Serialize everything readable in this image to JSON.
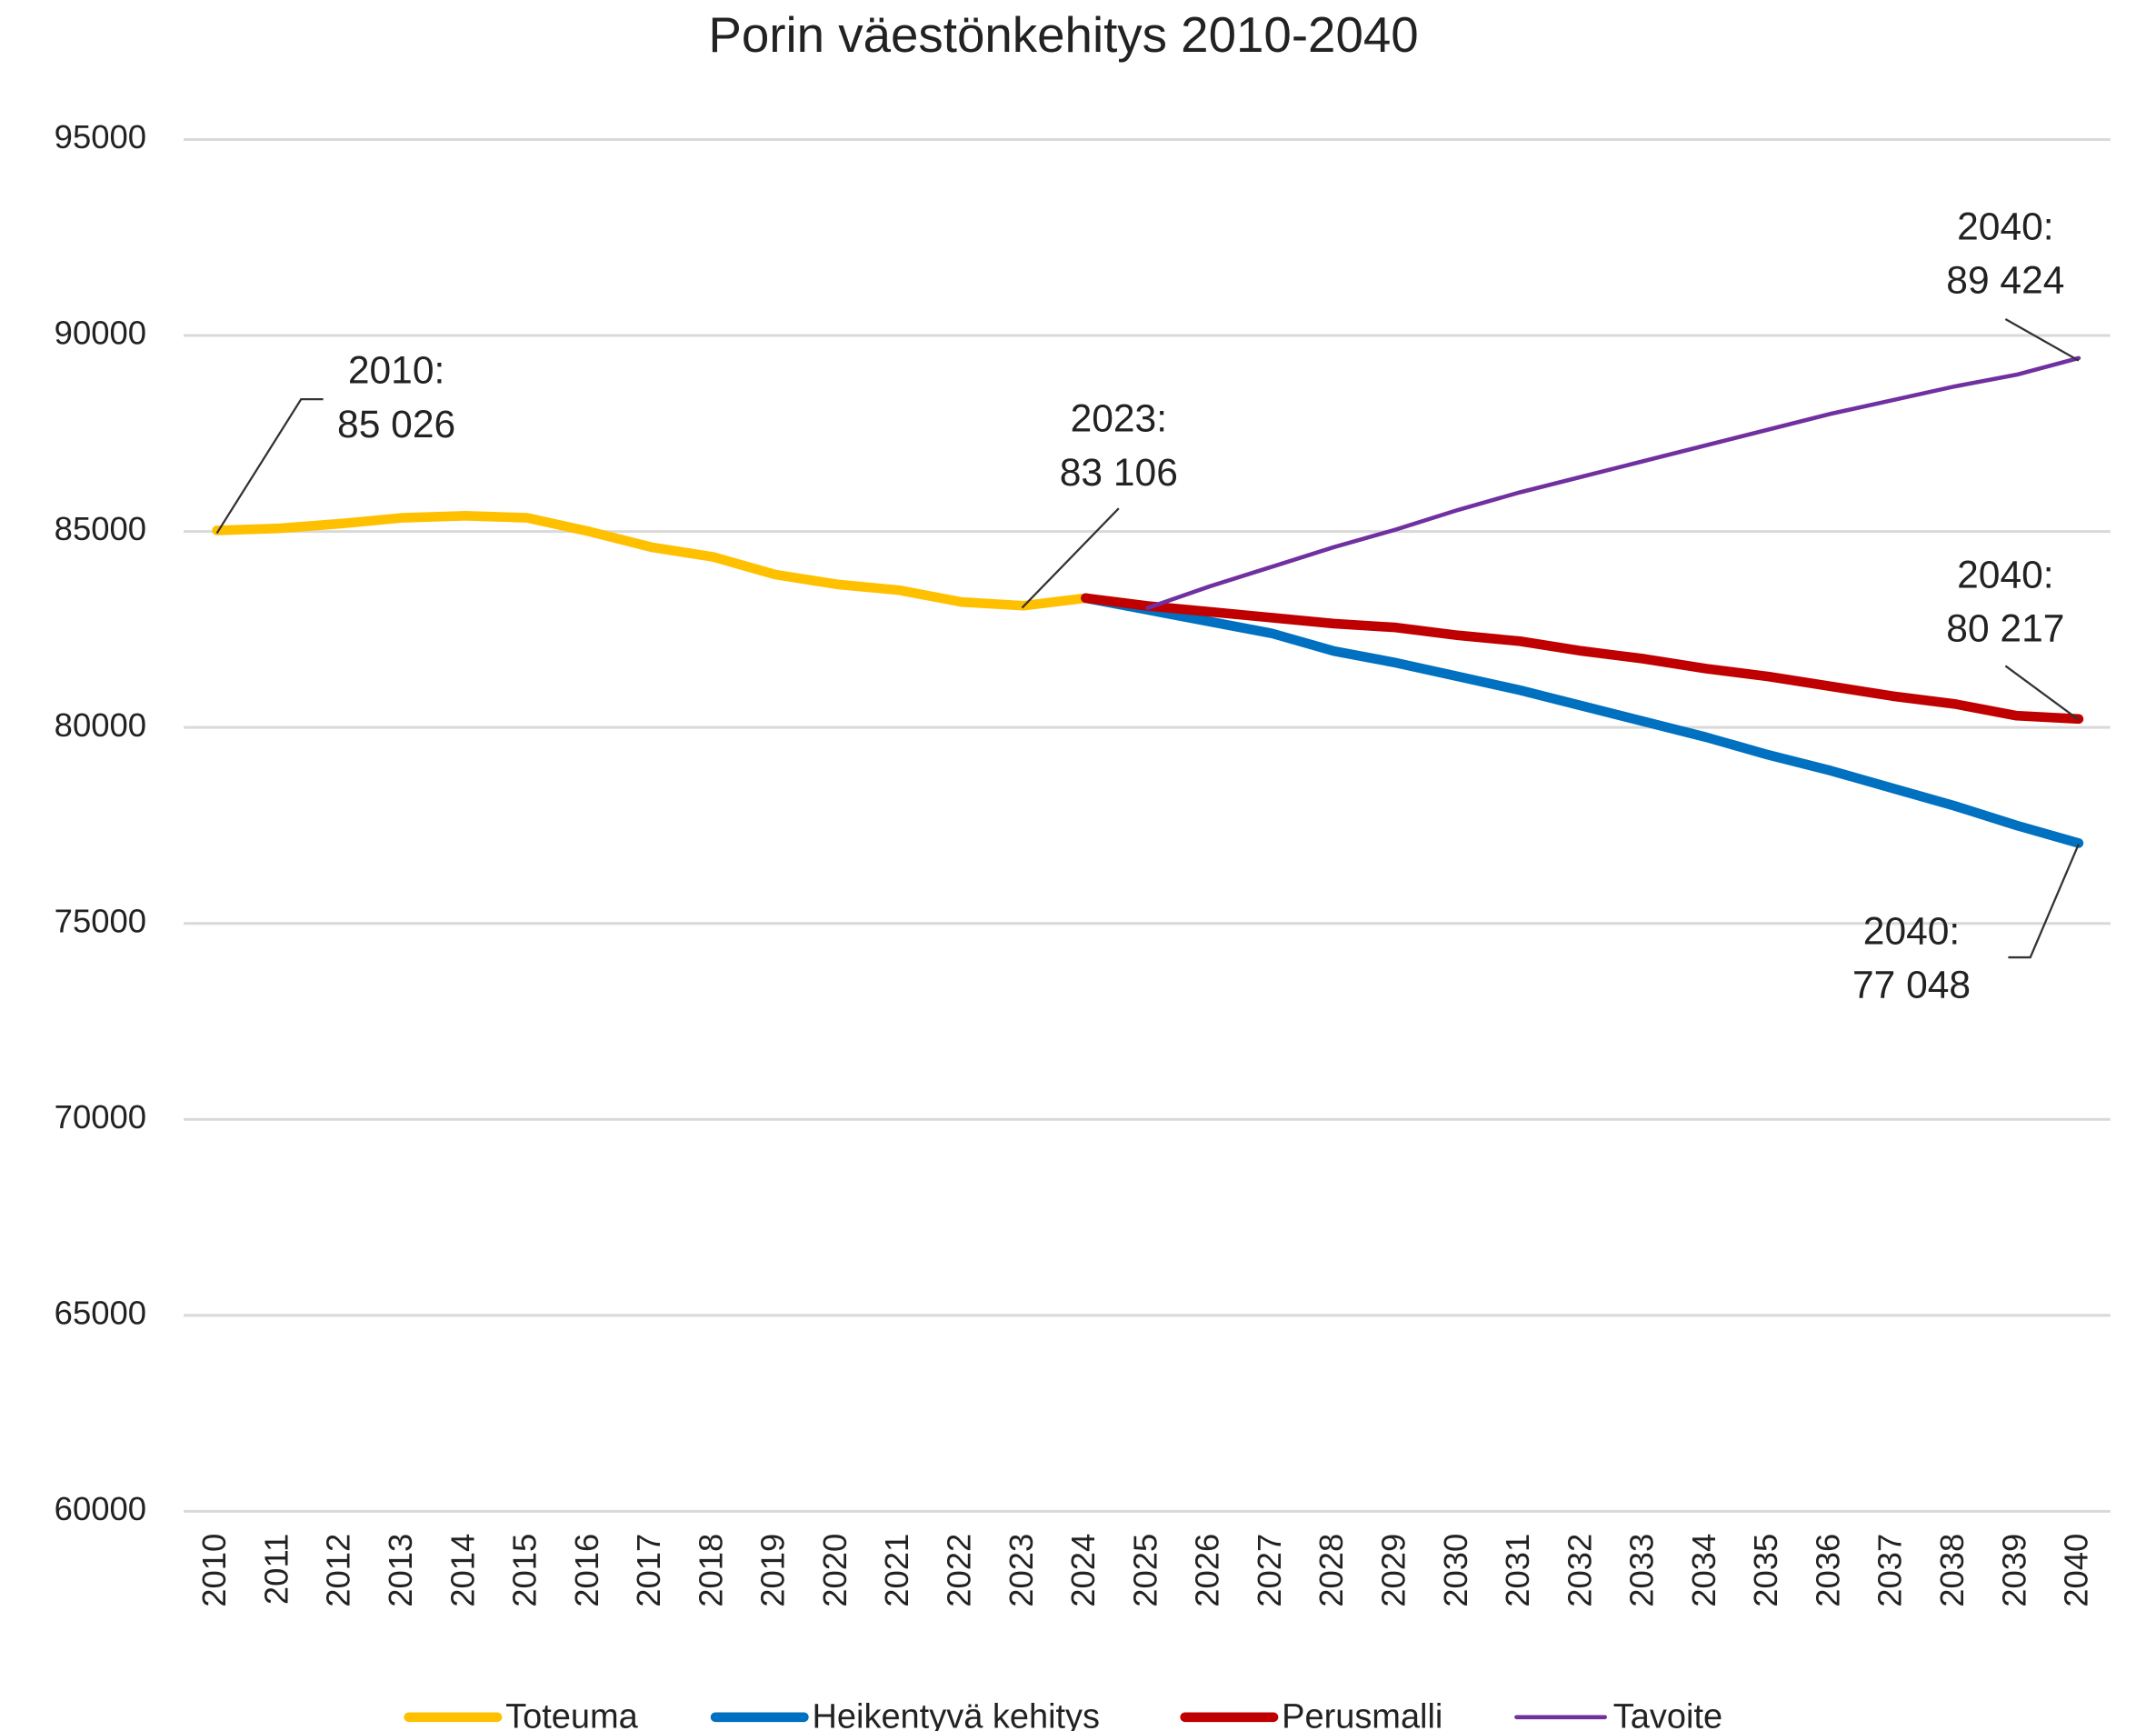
{
  "chart_data": {
    "type": "line",
    "title": "Porin väestönkehitys 2010-2040",
    "categories": [
      "2010",
      "2011",
      "2012",
      "2013",
      "2014",
      "2015",
      "2016",
      "2017",
      "2018",
      "2019",
      "2020",
      "2021",
      "2022",
      "2023",
      "2024",
      "2025",
      "2026",
      "2027",
      "2028",
      "2029",
      "2030",
      "2031",
      "2032",
      "2033",
      "2034",
      "2035",
      "2036",
      "2037",
      "2038",
      "2039",
      "2040"
    ],
    "series": [
      {
        "name": "Toteuma",
        "color": "#ffc000",
        "values": [
          85026,
          85080,
          85200,
          85350,
          85400,
          85350,
          85000,
          84600,
          84350,
          83900,
          83650,
          83500,
          83200,
          83106,
          83300,
          null,
          null,
          null,
          null,
          null,
          null,
          null,
          null,
          null,
          null,
          null,
          null,
          null,
          null,
          null,
          null
        ]
      },
      {
        "name": "Heikentyvä kehitys",
        "color": "#0070c0",
        "values": [
          null,
          null,
          null,
          null,
          null,
          null,
          null,
          null,
          null,
          null,
          null,
          null,
          null,
          null,
          83300,
          83000,
          82700,
          82400,
          81950,
          81650,
          81300,
          80950,
          80550,
          80150,
          79750,
          79300,
          78900,
          78450,
          78000,
          77500,
          77048
        ]
      },
      {
        "name": "Perusmalli",
        "color": "#c00000",
        "values": [
          null,
          null,
          null,
          null,
          null,
          null,
          null,
          null,
          null,
          null,
          null,
          null,
          null,
          null,
          83300,
          83100,
          82950,
          82800,
          82650,
          82550,
          82350,
          82200,
          81950,
          81750,
          81500,
          81300,
          81050,
          80800,
          80600,
          80300,
          80217
        ]
      },
      {
        "name": "Tavoite",
        "color": "#7030a0",
        "values": [
          null,
          null,
          null,
          null,
          null,
          null,
          null,
          null,
          null,
          null,
          null,
          null,
          null,
          null,
          null,
          83050,
          83600,
          84100,
          84600,
          85050,
          85550,
          86000,
          86400,
          86800,
          87200,
          87600,
          88000,
          88350,
          88700,
          89000,
          89424
        ]
      }
    ],
    "ylim": [
      60000,
      95000
    ],
    "yticks": [
      60000,
      65000,
      70000,
      75000,
      80000,
      85000,
      90000,
      95000
    ],
    "grid": true,
    "annotations": [
      [
        "2010:",
        "85 026"
      ],
      [
        "2023:",
        "83 106"
      ],
      [
        "2040:",
        "89 424"
      ],
      [
        "2040:",
        "80 217"
      ],
      [
        "2040:",
        "77 048"
      ]
    ]
  }
}
